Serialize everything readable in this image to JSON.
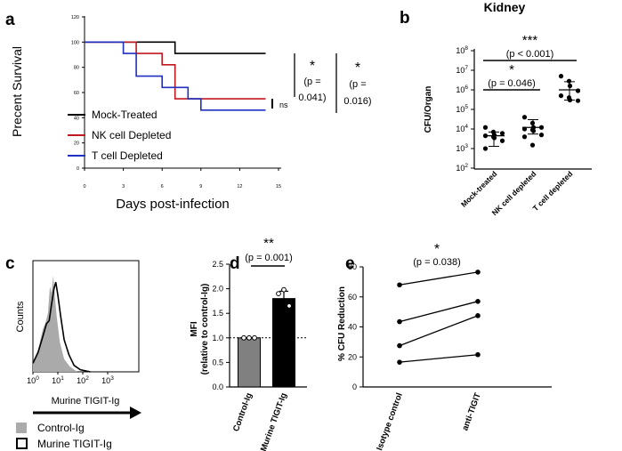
{
  "panel_labels": [
    "a",
    "b",
    "c",
    "d",
    "e"
  ],
  "chart_data": [
    {
      "panel": "a",
      "type": "line",
      "subtype": "kaplan-meier",
      "xlabel": "Days post-infection",
      "ylabel": "Precent Survival",
      "xlim": [
        0,
        15
      ],
      "ylim": [
        0,
        120
      ],
      "xticks": [
        "0",
        "3",
        "6",
        "9",
        "12",
        "15"
      ],
      "xtick_values": [
        0,
        3,
        6,
        9,
        12,
        15
      ],
      "yticks": [
        "0",
        "20",
        "40",
        "60",
        "80",
        "100",
        "120"
      ],
      "ytick_values": [
        0,
        20,
        40,
        60,
        80,
        100,
        120
      ],
      "colors": {
        "mock": "#000000",
        "nk": "#c0181f",
        "t": "#1f2fc0"
      },
      "series": [
        {
          "key": "mock",
          "name": "Mock-Treated",
          "steps": [
            [
              0,
              100
            ],
            [
              7,
              100
            ],
            [
              7,
              91
            ],
            [
              14,
              91
            ]
          ]
        },
        {
          "key": "nk",
          "name": "NK cell Depleted",
          "steps": [
            [
              0,
              100
            ],
            [
              4,
              100
            ],
            [
              4,
              91
            ],
            [
              6,
              91
            ],
            [
              6,
              82
            ],
            [
              7,
              82
            ],
            [
              7,
              55
            ],
            [
              14,
              55
            ]
          ]
        },
        {
          "key": "t",
          "name": "T cell Depleted",
          "steps": [
            [
              0,
              100
            ],
            [
              3,
              100
            ],
            [
              3,
              91
            ],
            [
              4,
              91
            ],
            [
              4,
              73
            ],
            [
              6,
              73
            ],
            [
              6,
              64
            ],
            [
              8,
              64
            ],
            [
              8,
              55
            ],
            [
              9,
              55
            ],
            [
              9,
              46
            ],
            [
              14,
              46
            ]
          ]
        }
      ],
      "annotations": {
        "ns": "ns",
        "star1": "*",
        "p1_line1": "(p =",
        "p1_line2": "0.041)",
        "star2": "*",
        "p2_line1": "(p =",
        "p2_line2": "0.016)"
      }
    },
    {
      "panel": "b",
      "type": "scatter",
      "title": "Kidney",
      "ylabel": "CFU/Organ",
      "yscale": "log",
      "ylim": [
        100,
        100000000
      ],
      "yticks": [
        {
          "base": "10",
          "exp": "2",
          "value": 100
        },
        {
          "base": "10",
          "exp": "3",
          "value": 1000
        },
        {
          "base": "10",
          "exp": "4",
          "value": 10000
        },
        {
          "base": "10",
          "exp": "5",
          "value": 100000
        },
        {
          "base": "10",
          "exp": "6",
          "value": 1000000
        },
        {
          "base": "10",
          "exp": "7",
          "value": 10000000
        },
        {
          "base": "10",
          "exp": "8",
          "value": 100000000
        }
      ],
      "categories": [
        "Mock-treated",
        "NK cell depleted",
        "T cell depleted"
      ],
      "groups": [
        {
          "values": [
            12000,
            7000,
            5000,
            6000,
            4500,
            4000,
            3500,
            2500,
            1000
          ],
          "mean": 4500,
          "sd_low": 1300,
          "sd_high": 7000
        },
        {
          "values": [
            40000,
            20000,
            12000,
            12000,
            10000,
            9000,
            8000,
            5000,
            4000,
            1500
          ],
          "mean": 12000,
          "sd_low": 5500,
          "sd_high": 30000
        },
        {
          "values": [
            5000000,
            2800000,
            1600000,
            900000,
            500000,
            400000,
            300000,
            280000
          ],
          "mean": 1000000,
          "sd_low": 300000,
          "sd_high": 2600000
        }
      ],
      "significance": [
        {
          "from": 0,
          "to": 1,
          "star": "*",
          "p": "(p = 0.046)"
        },
        {
          "from": 0,
          "to": 2,
          "star": "***",
          "p": "(p < 0.001)"
        }
      ]
    },
    {
      "panel": "c",
      "type": "histogram",
      "ylabel": "Counts",
      "xlabel": "Murine TIGIT-Ig",
      "xscale": "log",
      "xticks": [
        {
          "base": "10",
          "exp": "0",
          "value": 1
        },
        {
          "base": "10",
          "exp": "1",
          "value": 10
        },
        {
          "base": "10",
          "exp": "2",
          "value": 100
        },
        {
          "base": "10",
          "exp": "3",
          "value": 1000
        }
      ],
      "series": [
        {
          "name": "Control-Ig",
          "style": "filled",
          "color": "#aaaaaa",
          "points": [
            [
              1,
              10
            ],
            [
              1.6,
              20
            ],
            [
              2.5,
              40
            ],
            [
              3.2,
              46
            ],
            [
              4,
              55
            ],
            [
              4.8,
              80
            ],
            [
              5.6,
              74
            ],
            [
              6.5,
              90
            ],
            [
              7.5,
              72
            ],
            [
              9,
              52
            ],
            [
              12,
              28
            ],
            [
              18,
              12
            ],
            [
              30,
              5
            ],
            [
              60,
              0
            ]
          ]
        },
        {
          "name": "Murine TIGIT-Ig",
          "style": "outline",
          "color": "#000000",
          "points": [
            [
              1,
              8
            ],
            [
              1.6,
              18
            ],
            [
              2.5,
              33
            ],
            [
              3.5,
              45
            ],
            [
              4.5,
              48
            ],
            [
              5.5,
              62
            ],
            [
              7,
              78
            ],
            [
              8.3,
              84
            ],
            [
              10,
              72
            ],
            [
              13,
              52
            ],
            [
              18,
              30
            ],
            [
              28,
              16
            ],
            [
              45,
              6
            ],
            [
              80,
              2
            ],
            [
              200,
              0
            ]
          ]
        }
      ]
    },
    {
      "panel": "d",
      "type": "bar",
      "ylabel_line1": "MFI",
      "ylabel_line2": "(relative to control-Ig)",
      "ylim": [
        0,
        2.5
      ],
      "yticks": [
        "0.0",
        "0.5",
        "1.0",
        "1.5",
        "2.0",
        "2.5"
      ],
      "ytick_values": [
        0,
        0.5,
        1.0,
        1.5,
        2.0,
        2.5
      ],
      "reference_line": 1.0,
      "categories": [
        "Control-Ig",
        "Murine TIGIT-Ig"
      ],
      "values": [
        1.0,
        1.8
      ],
      "errors": [
        0.0,
        0.15
      ],
      "colors": [
        "#808080",
        "#000000"
      ],
      "points": [
        [
          1.0,
          1.0,
          1.0
        ],
        [
          1.9,
          1.98,
          1.65
        ]
      ],
      "significance": {
        "star": "**",
        "p": "(p = 0.001)"
      }
    },
    {
      "panel": "e",
      "type": "line",
      "subtype": "paired",
      "ylabel": "% CFU Reduction",
      "ylim": [
        0,
        80
      ],
      "yticks": [
        "0",
        "20",
        "40",
        "60",
        "80"
      ],
      "ytick_values": [
        0,
        20,
        40,
        60,
        80
      ],
      "categories": [
        "Isotype control",
        "anti-TIGIT"
      ],
      "series": [
        {
          "name": "pair 1",
          "values": [
            68,
            76.5
          ]
        },
        {
          "name": "pair 2",
          "values": [
            43.5,
            57
          ]
        },
        {
          "name": "pair 3",
          "values": [
            27.5,
            47.5
          ]
        },
        {
          "name": "pair 4",
          "values": [
            16.5,
            21.5
          ]
        }
      ],
      "significance": {
        "star": "*",
        "p": "(p = 0.038)"
      }
    }
  ]
}
